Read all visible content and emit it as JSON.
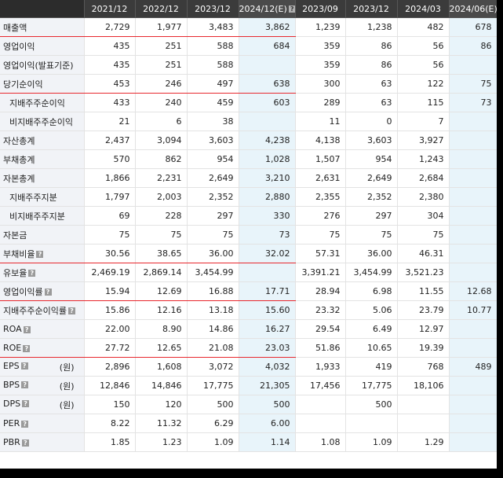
{
  "help_glyph": "?",
  "columns": [
    {
      "label": "2021/12",
      "estimate": false,
      "help": false
    },
    {
      "label": "2022/12",
      "estimate": false,
      "help": false
    },
    {
      "label": "2023/12",
      "estimate": false,
      "help": false
    },
    {
      "label": "2024/12(E)",
      "estimate": true,
      "help": true
    },
    {
      "label": "2023/09",
      "estimate": false,
      "help": false
    },
    {
      "label": "2023/12",
      "estimate": false,
      "help": false
    },
    {
      "label": "2024/03",
      "estimate": false,
      "help": false
    },
    {
      "label": "2024/06(E)",
      "estimate": true,
      "help": true
    }
  ],
  "rows": [
    {
      "label": "매출액",
      "sub": false,
      "help": false,
      "unit": "",
      "red": true,
      "values": [
        "2,729",
        "1,977",
        "3,483",
        "3,862",
        "1,239",
        "1,238",
        "482",
        "678"
      ]
    },
    {
      "label": "영업이익",
      "sub": false,
      "help": false,
      "unit": "",
      "red": false,
      "values": [
        "435",
        "251",
        "588",
        "684",
        "359",
        "86",
        "56",
        "86"
      ]
    },
    {
      "label": "영업이익(발표기준)",
      "sub": false,
      "help": false,
      "unit": "",
      "red": false,
      "values": [
        "435",
        "251",
        "588",
        "",
        "359",
        "86",
        "56",
        ""
      ]
    },
    {
      "label": "당기순이익",
      "sub": false,
      "help": false,
      "unit": "",
      "red": true,
      "values": [
        "453",
        "246",
        "497",
        "638",
        "300",
        "63",
        "122",
        "75"
      ]
    },
    {
      "label": "지배주주순이익",
      "sub": true,
      "help": false,
      "unit": "",
      "red": false,
      "values": [
        "433",
        "240",
        "459",
        "603",
        "289",
        "63",
        "115",
        "73"
      ]
    },
    {
      "label": "비지배주주순이익",
      "sub": true,
      "help": false,
      "unit": "",
      "red": false,
      "values": [
        "21",
        "6",
        "38",
        "",
        "11",
        "0",
        "7",
        ""
      ]
    },
    {
      "label": "자산총계",
      "sub": false,
      "help": false,
      "unit": "",
      "red": false,
      "values": [
        "2,437",
        "3,094",
        "3,603",
        "4,238",
        "4,138",
        "3,603",
        "3,927",
        ""
      ]
    },
    {
      "label": "부채총계",
      "sub": false,
      "help": false,
      "unit": "",
      "red": false,
      "values": [
        "570",
        "862",
        "954",
        "1,028",
        "1,507",
        "954",
        "1,243",
        ""
      ]
    },
    {
      "label": "자본총계",
      "sub": false,
      "help": false,
      "unit": "",
      "red": false,
      "values": [
        "1,866",
        "2,231",
        "2,649",
        "3,210",
        "2,631",
        "2,649",
        "2,684",
        ""
      ]
    },
    {
      "label": "지배주주지분",
      "sub": true,
      "help": false,
      "unit": "",
      "red": false,
      "values": [
        "1,797",
        "2,003",
        "2,352",
        "2,880",
        "2,355",
        "2,352",
        "2,380",
        ""
      ]
    },
    {
      "label": "비지배주주지분",
      "sub": true,
      "help": false,
      "unit": "",
      "red": false,
      "values": [
        "69",
        "228",
        "297",
        "330",
        "276",
        "297",
        "304",
        ""
      ]
    },
    {
      "label": "자본금",
      "sub": false,
      "help": false,
      "unit": "",
      "red": false,
      "values": [
        "75",
        "75",
        "75",
        "73",
        "75",
        "75",
        "75",
        ""
      ]
    },
    {
      "label": "부채비율",
      "sub": false,
      "help": true,
      "unit": "",
      "red": true,
      "values": [
        "30.56",
        "38.65",
        "36.00",
        "32.02",
        "57.31",
        "36.00",
        "46.31",
        ""
      ]
    },
    {
      "label": "유보율",
      "sub": false,
      "help": true,
      "unit": "",
      "red": false,
      "values": [
        "2,469.19",
        "2,869.14",
        "3,454.99",
        "",
        "3,391.21",
        "3,454.99",
        "3,521.23",
        ""
      ]
    },
    {
      "label": "영업이익률",
      "sub": false,
      "help": true,
      "unit": "",
      "red": true,
      "values": [
        "15.94",
        "12.69",
        "16.88",
        "17.71",
        "28.94",
        "6.98",
        "11.55",
        "12.68"
      ]
    },
    {
      "label": "지배주주순이익률",
      "sub": false,
      "help": true,
      "unit": "",
      "red": false,
      "values": [
        "15.86",
        "12.16",
        "13.18",
        "15.60",
        "23.32",
        "5.06",
        "23.79",
        "10.77"
      ]
    },
    {
      "label": "ROA",
      "sub": false,
      "help": true,
      "unit": "",
      "red": false,
      "values": [
        "22.00",
        "8.90",
        "14.86",
        "16.27",
        "29.54",
        "6.49",
        "12.97",
        ""
      ]
    },
    {
      "label": "ROE",
      "sub": false,
      "help": true,
      "unit": "",
      "red": true,
      "values": [
        "27.72",
        "12.65",
        "21.08",
        "23.03",
        "51.86",
        "10.65",
        "19.39",
        ""
      ]
    },
    {
      "label": "EPS",
      "sub": false,
      "help": true,
      "unit": "(원)",
      "red": false,
      "values": [
        "2,896",
        "1,608",
        "3,072",
        "4,032",
        "1,933",
        "419",
        "768",
        "489"
      ]
    },
    {
      "label": "BPS",
      "sub": false,
      "help": true,
      "unit": "(원)",
      "red": false,
      "values": [
        "12,846",
        "14,846",
        "17,775",
        "21,305",
        "17,456",
        "17,775",
        "18,106",
        ""
      ]
    },
    {
      "label": "DPS",
      "sub": false,
      "help": true,
      "unit": "(원)",
      "red": false,
      "values": [
        "150",
        "120",
        "500",
        "500",
        "",
        "500",
        "",
        ""
      ]
    },
    {
      "label": "PER",
      "sub": false,
      "help": true,
      "unit": "",
      "red": false,
      "values": [
        "8.22",
        "11.32",
        "6.29",
        "6.00",
        "",
        "",
        "",
        ""
      ]
    },
    {
      "label": "PBR",
      "sub": false,
      "help": true,
      "unit": "",
      "red": false,
      "values": [
        "1.85",
        "1.23",
        "1.09",
        "1.14",
        "1.08",
        "1.09",
        "1.29",
        ""
      ]
    }
  ]
}
